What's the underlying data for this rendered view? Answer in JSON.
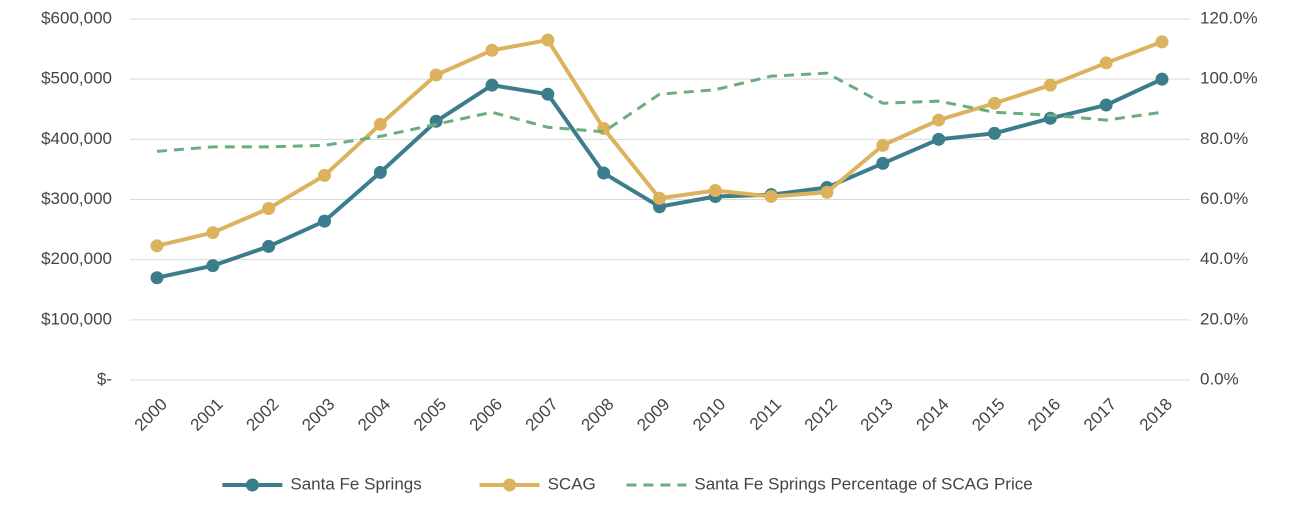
{
  "chart_data": {
    "type": "line",
    "categories": [
      "2000",
      "2001",
      "2002",
      "2003",
      "2004",
      "2005",
      "2006",
      "2007",
      "2008",
      "2009",
      "2010",
      "2011",
      "2012",
      "2013",
      "2014",
      "2015",
      "2016",
      "2017",
      "2018"
    ],
    "series": [
      {
        "name": "Santa Fe Springs",
        "color": "#3c7d8c",
        "marker": true,
        "values": [
          170000,
          190000,
          222000,
          264000,
          345000,
          430000,
          490000,
          475000,
          344000,
          288000,
          305000,
          308000,
          320000,
          360000,
          400000,
          410000,
          435000,
          457000,
          500000
        ]
      },
      {
        "name": "SCAG",
        "color": "#ddb25c",
        "marker": true,
        "values": [
          223000,
          245000,
          285000,
          340000,
          425000,
          507000,
          548000,
          565000,
          418000,
          302000,
          315000,
          305000,
          312000,
          390000,
          432000,
          460000,
          490000,
          527000,
          562000
        ]
      },
      {
        "name": "Santa Fe Springs Percentage of SCAG Price",
        "color": "#6aad7f",
        "marker": false,
        "dashed": true,
        "axis": "y2",
        "values": [
          76,
          77.5,
          77.5,
          78,
          81,
          85,
          89,
          84,
          82.5,
          95,
          96.5,
          101,
          102,
          92,
          92.7,
          89,
          88,
          86.4,
          89
        ]
      }
    ],
    "ylim": [
      0,
      600000
    ],
    "yticks": [
      {
        "value": 0,
        "label": "$-"
      },
      {
        "value": 100000,
        "label": "$100,000"
      },
      {
        "value": 200000,
        "label": "$200,000"
      },
      {
        "value": 300000,
        "label": "$300,000"
      },
      {
        "value": 400000,
        "label": "$400,000"
      },
      {
        "value": 500000,
        "label": "$500,000"
      },
      {
        "value": 600000,
        "label": "$600,000"
      }
    ],
    "y2lim": [
      0,
      120
    ],
    "y2ticks": [
      {
        "value": 0,
        "label": "0.0%"
      },
      {
        "value": 20,
        "label": "20.0%"
      },
      {
        "value": 40,
        "label": "40.0%"
      },
      {
        "value": 60,
        "label": "60.0%"
      },
      {
        "value": 80,
        "label": "80.0%"
      },
      {
        "value": 100,
        "label": "100.0%"
      },
      {
        "value": 120,
        "label": "120.0%"
      }
    ],
    "grid": true,
    "legend": "bottom"
  }
}
